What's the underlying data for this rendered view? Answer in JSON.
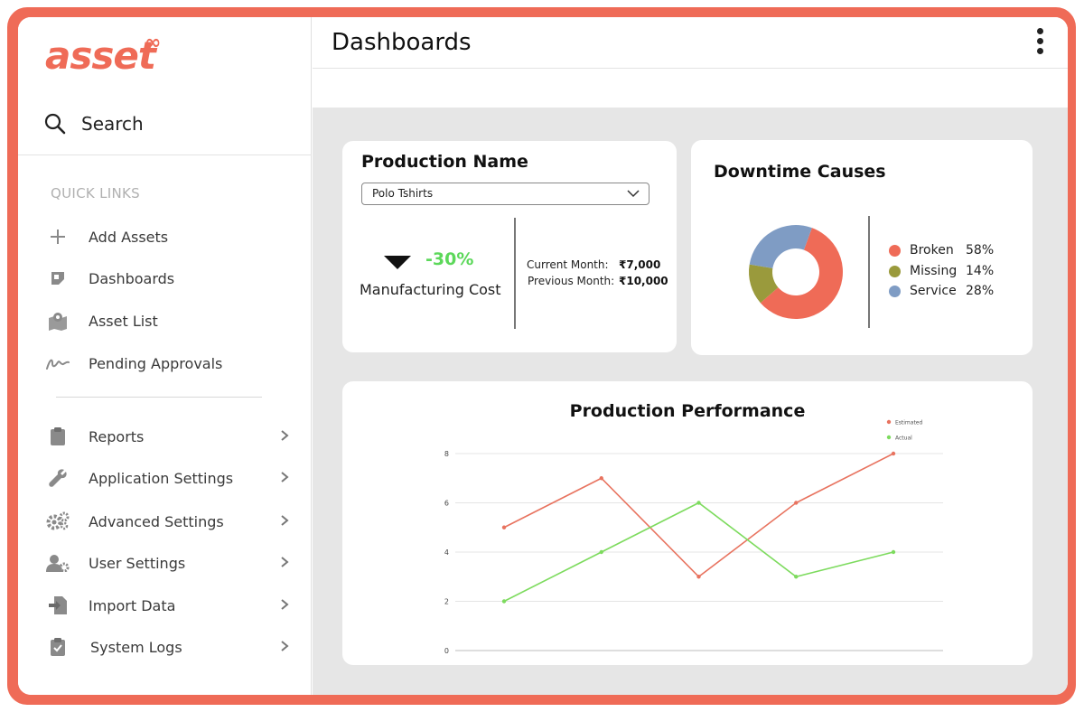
{
  "brand": {
    "name": "asset",
    "mark": "∞"
  },
  "search": {
    "label": "Search"
  },
  "quick_links": {
    "title": "QUICK LINKS",
    "items": [
      {
        "label": "Add Assets",
        "icon": "plus-icon"
      },
      {
        "label": "Dashboards",
        "icon": "dashboard-icon"
      },
      {
        "label": "Asset List",
        "icon": "map-icon"
      },
      {
        "label": "Pending Approvals",
        "icon": "signature-icon"
      }
    ]
  },
  "menu": {
    "items": [
      {
        "label": "Reports",
        "icon": "clipboard-icon"
      },
      {
        "label": "Application Settings",
        "icon": "wrench-icon"
      },
      {
        "label": "Advanced Settings",
        "icon": "gears-icon"
      },
      {
        "label": "User Settings",
        "icon": "user-gear-icon"
      },
      {
        "label": "Import Data",
        "icon": "import-icon"
      },
      {
        "label": "System Logs",
        "icon": "clipboard-check-icon"
      }
    ]
  },
  "header": {
    "title": "Dashboards"
  },
  "production": {
    "title": "Production Name",
    "selected": "Polo Tshirts",
    "change": "-30%",
    "metric": "Manufacturing Cost",
    "current_label": "Current Month:",
    "current_value": "₹7,000",
    "previous_label": "Previous Month:",
    "previous_value": "₹10,000"
  },
  "downtime": {
    "title": "Downtime Causes",
    "items": [
      {
        "name": "Broken",
        "pct": "58%",
        "value": 58,
        "color": "#ef6b57"
      },
      {
        "name": "Missing",
        "pct": "14%",
        "value": 14,
        "color": "#9a9a3c"
      },
      {
        "name": "Service",
        "pct": "28%",
        "value": 28,
        "color": "#7f9cc4"
      }
    ]
  },
  "colors": {
    "accent": "#ef6b57",
    "positive": "#5cd85a"
  },
  "chart_data": {
    "type": "line",
    "title": "Production Performance",
    "x": [
      1,
      2,
      3,
      4,
      5
    ],
    "ylim": [
      0,
      8
    ],
    "yticks": [
      "0",
      "2",
      "4",
      "6",
      "8"
    ],
    "grid": true,
    "legend": "top-right",
    "series": [
      {
        "name": "Estimated",
        "color": "#e8735f",
        "values": [
          5,
          7,
          3,
          6,
          8
        ]
      },
      {
        "name": "Actual",
        "color": "#7ddb5e",
        "values": [
          2,
          4,
          6,
          3,
          4
        ]
      }
    ]
  }
}
